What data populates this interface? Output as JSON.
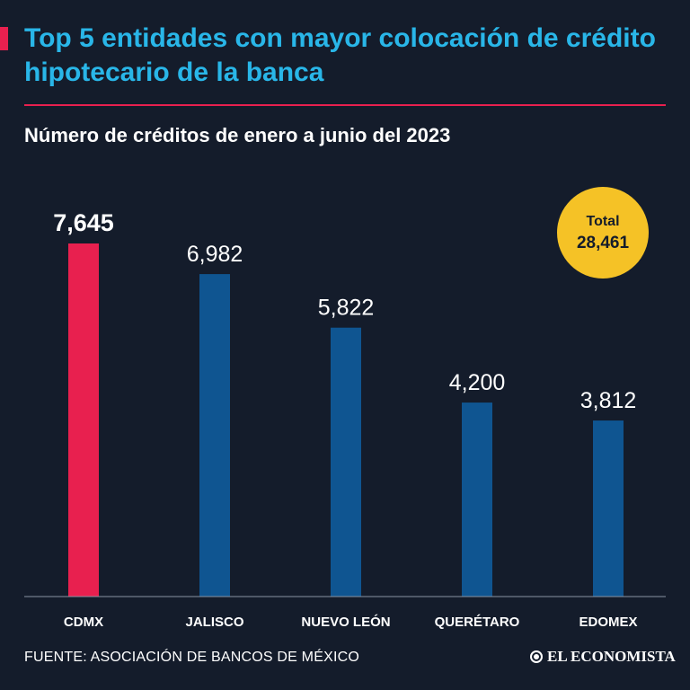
{
  "header": {
    "title": "Top 5 entidades con mayor colocación de crédito hipotecario de la banca",
    "subtitle": "Número de créditos de enero a junio del 2023"
  },
  "total": {
    "label": "Total",
    "value": "28,461"
  },
  "footer": {
    "source": "FUENTE: ASOCIACIÓN DE BANCOS DE MÉXICO",
    "brand": "EL ECONOMISTA",
    "brand_icon": "el-economista-logo-icon"
  },
  "colors": {
    "background": "#141c2b",
    "title": "#29b6e8",
    "highlight_bar": "#e8204f",
    "bar": "#0f5591",
    "total_badge": "#f5c226"
  },
  "chart_data": {
    "type": "bar",
    "title": "Número de créditos de enero a junio del 2023",
    "categories": [
      "CDMX",
      "JALISCO",
      "NUEVO LEÓN",
      "QUERÉTARO",
      "EDOMEX"
    ],
    "values": [
      7645,
      6982,
      5822,
      4200,
      3812
    ],
    "value_labels": [
      "7,645",
      "6,982",
      "5,822",
      "4,200",
      "3,812"
    ],
    "highlight_index": 0,
    "xlabel": "",
    "ylabel": "",
    "ylim": [
      0,
      7645
    ],
    "grid": false
  }
}
